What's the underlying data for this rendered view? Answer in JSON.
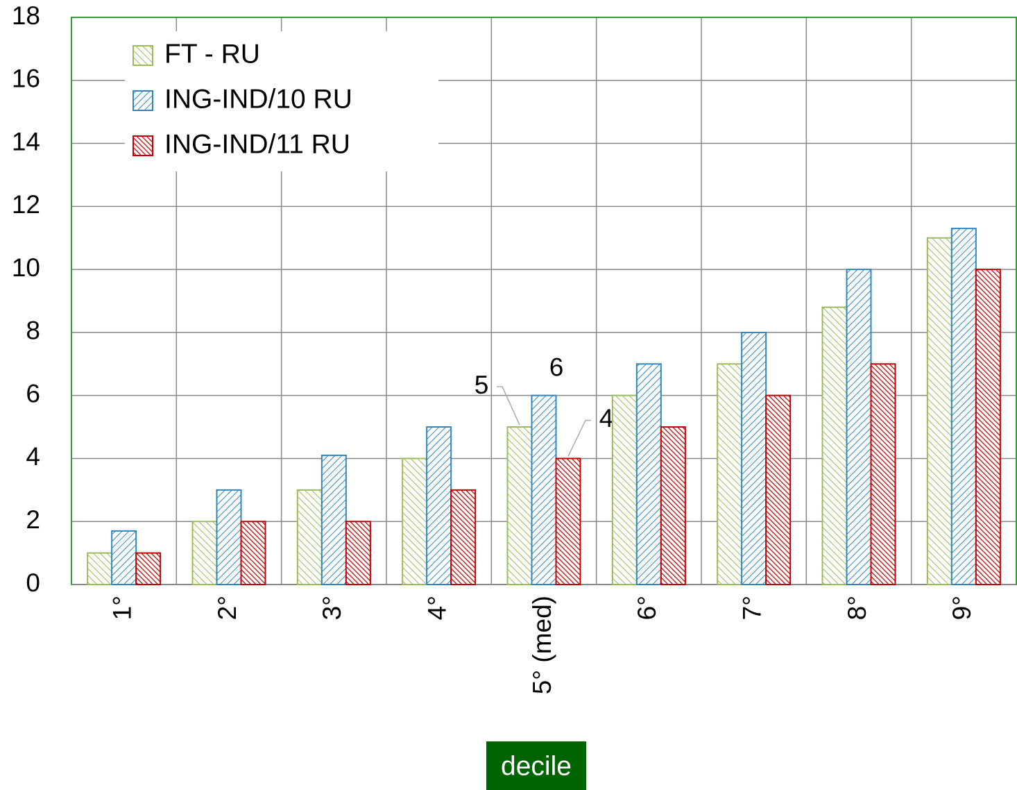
{
  "chart_data": {
    "type": "bar",
    "x_label": "decile",
    "categories": [
      "1°",
      "2°",
      "3°",
      "4°",
      "5° (med)",
      "6°",
      "7°",
      "8°",
      "9°"
    ],
    "series": [
      {
        "name": "FT - RU",
        "color": "#9bbb59",
        "values": [
          1,
          2,
          3,
          4,
          5,
          6,
          7,
          8.8,
          11
        ],
        "value_labels": [
          null,
          null,
          null,
          null,
          "5",
          null,
          null,
          null,
          null
        ]
      },
      {
        "name": "ING-IND/10 RU",
        "color": "#2e86c1",
        "values": [
          1.7,
          3,
          4.1,
          5,
          6,
          7,
          8,
          10,
          11.3
        ],
        "value_labels": [
          null,
          null,
          null,
          null,
          "6",
          null,
          null,
          null,
          null
        ]
      },
      {
        "name": "ING-IND/11 RU",
        "color": "#c00000",
        "values": [
          1,
          2,
          2,
          3,
          4,
          5,
          6,
          7,
          10
        ],
        "value_labels": [
          null,
          null,
          null,
          null,
          "4",
          null,
          null,
          null,
          null
        ]
      }
    ],
    "ylim": [
      0,
      18
    ],
    "yticks": [
      0,
      2,
      4,
      6,
      8,
      10,
      12,
      14,
      16,
      18
    ],
    "grid": true,
    "legend": "top-left"
  }
}
